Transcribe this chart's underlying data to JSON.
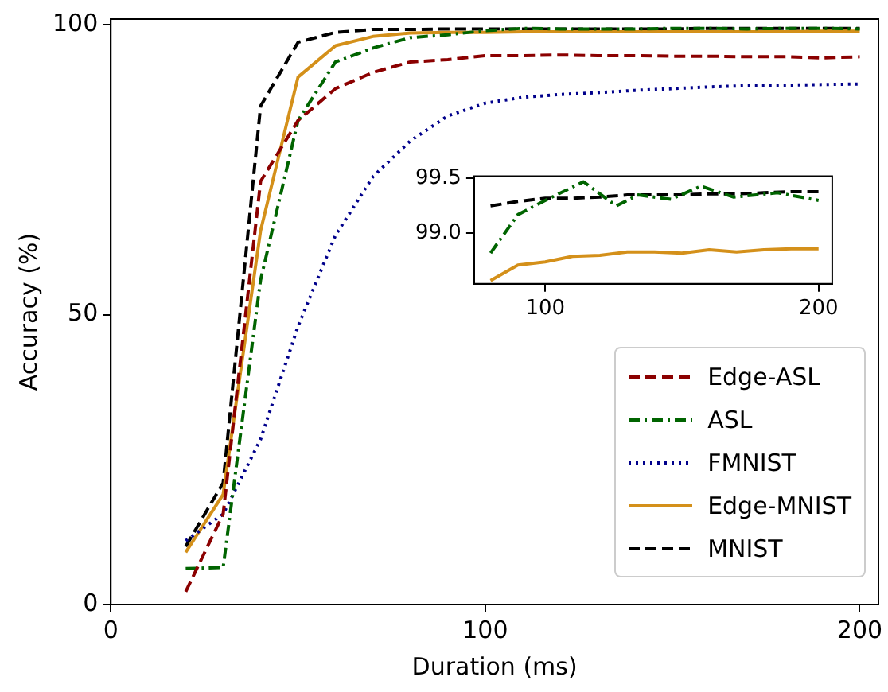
{
  "chart_data": [
    {
      "type": "line",
      "xlabel": "Duration (ms)",
      "ylabel": "Accuracy (%)",
      "x": [
        20,
        30,
        40,
        50,
        60,
        70,
        80,
        90,
        100,
        110,
        120,
        130,
        140,
        150,
        160,
        170,
        180,
        190,
        200
      ],
      "series": [
        {
          "name": "Edge-ASL",
          "color": "#8b0000",
          "line_style": "dashed",
          "values": [
            2.2,
            15.6,
            73,
            83.5,
            89,
            91.8,
            93.6,
            94,
            94.7,
            94.7,
            94.8,
            94.7,
            94.7,
            94.6,
            94.6,
            94.5,
            94.5,
            94.3,
            94.5
          ]
        },
        {
          "name": "ASL",
          "color": "#006400",
          "line_style": "dashdot",
          "values": [
            6.2,
            6.4,
            56,
            83.5,
            93.6,
            96,
            97.8,
            98.3,
            99,
            99.4,
            99.3,
            99.3,
            99.3,
            99.4,
            99.4,
            99.3,
            99.4,
            99.4,
            99.3
          ]
        },
        {
          "name": "FMNIST",
          "color": "#00008b",
          "line_style": "dotted",
          "values": [
            11,
            15.6,
            28.5,
            48,
            63.7,
            73.8,
            80,
            84.3,
            86.5,
            87.5,
            88,
            88.3,
            88.7,
            89,
            89.3,
            89.5,
            89.6,
            89.7,
            89.8
          ]
        },
        {
          "name": "Edge-MNIST",
          "color": "#d4901a",
          "line_style": "solid",
          "values": [
            9,
            19,
            64.5,
            91,
            96.4,
            98,
            98.6,
            98.7,
            98.7,
            98.8,
            98.8,
            98.8,
            98.8,
            98.8,
            98.8,
            98.8,
            98.8,
            98.9,
            98.9
          ]
        },
        {
          "name": "MNIST",
          "color": "#000000",
          "line_style": "dashed",
          "values": [
            10,
            21,
            86,
            97,
            98.7,
            99.2,
            99.2,
            99.3,
            99.3,
            99.3,
            99.3,
            99.3,
            99.3,
            99.3,
            99.4,
            99.4,
            99.4,
            99.4,
            99.4
          ]
        }
      ],
      "xlim": [
        0,
        205
      ],
      "ylim": [
        0,
        101
      ],
      "xticks": [
        0,
        100,
        200
      ],
      "yticks": [
        0,
        50,
        100
      ],
      "grid": false,
      "legend": "bottom right"
    },
    {
      "type": "line",
      "x": [
        80,
        90,
        100,
        110,
        120,
        130,
        140,
        150,
        160,
        170,
        180,
        190,
        200
      ],
      "series": [
        {
          "color": "#006400",
          "line_style": "dashdot",
          "x": [
            80,
            90,
            100,
            114,
            126,
            134,
            146,
            157,
            169,
            185,
            200
          ],
          "values": [
            98.82,
            99.17,
            99.3,
            99.47,
            99.25,
            99.35,
            99.31,
            99.43,
            99.33,
            99.37,
            99.3
          ]
        },
        {
          "color": "#d4901a",
          "line_style": "solid",
          "values": [
            98.57,
            98.71,
            98.74,
            98.79,
            98.8,
            98.83,
            98.83,
            98.82,
            98.85,
            98.83,
            98.85,
            98.86,
            98.86
          ]
        },
        {
          "color": "#000000",
          "line_style": "dashed",
          "values": [
            99.25,
            99.29,
            99.32,
            99.32,
            99.33,
            99.35,
            99.35,
            99.35,
            99.36,
            99.36,
            99.37,
            99.38,
            99.38
          ]
        }
      ],
      "xlim": [
        74,
        205
      ],
      "ylim": [
        98.54,
        99.52
      ],
      "xticks": [
        100,
        200
      ],
      "yticks": [
        {
          "value": 99,
          "label": "99.0"
        },
        99.5
      ],
      "grid": false,
      "legend": false
    }
  ]
}
